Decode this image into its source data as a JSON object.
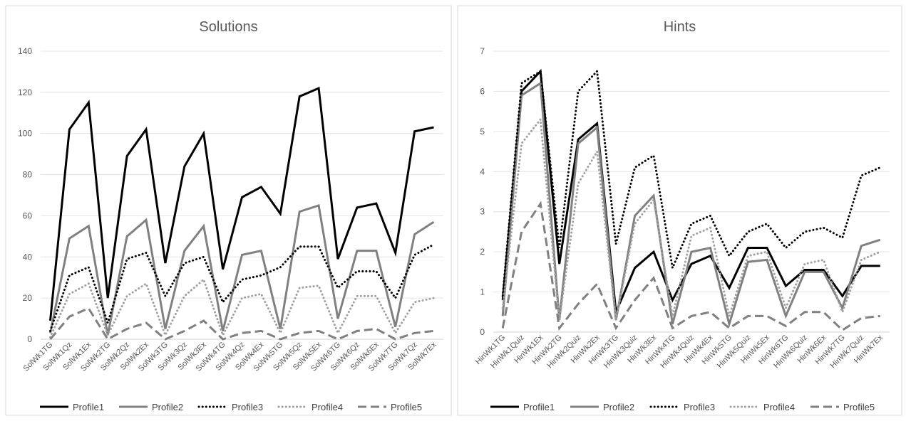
{
  "chart_data": [
    {
      "type": "line",
      "title": "Solutions",
      "xlabel": "",
      "ylabel": "",
      "ylim": [
        0,
        140
      ],
      "yticks": [
        0,
        20,
        40,
        60,
        80,
        100,
        120,
        140
      ],
      "grid": true,
      "legend_position": "bottom",
      "categories": [
        "SolWk1TG",
        "SolWk1Qz",
        "SolWk1Ex",
        "SolWk2TG",
        "SolWk2Qz",
        "SolWk2Ex",
        "SolWk3TG",
        "SolWk3Qz",
        "SolWk3Ex",
        "SolWk4TG",
        "SolWk4Qz",
        "SolWk4Ex",
        "SolWk5TG",
        "SolWk5Qz",
        "SolWk5Ex",
        "SolWk6TG",
        "SolWk6Qz",
        "SolWk6Ex",
        "SolWk7TG",
        "SolWk7Qz",
        "SolWk7Ex"
      ],
      "series": [
        {
          "name": "Profile1",
          "color": "#000000",
          "style": "solid",
          "values": [
            9,
            102,
            115,
            20,
            89,
            102,
            37,
            84,
            100,
            34,
            69,
            74,
            61,
            118,
            122,
            39,
            64,
            66,
            42,
            101,
            103
          ]
        },
        {
          "name": "Profile2",
          "color": "#808080",
          "style": "solid",
          "values": [
            3,
            49,
            55,
            2,
            50,
            58,
            5,
            43,
            55,
            4,
            41,
            43,
            5,
            62,
            65,
            10,
            43,
            43,
            6,
            51,
            57
          ]
        },
        {
          "name": "Profile3",
          "color": "#000000",
          "style": "dotted",
          "values": [
            4,
            31,
            35,
            8,
            39,
            42,
            21,
            37,
            40,
            18,
            29,
            31,
            35,
            45,
            45,
            25,
            33,
            33,
            20,
            41,
            46
          ]
        },
        {
          "name": "Profile4",
          "color": "#a0a0a0",
          "style": "dotted",
          "values": [
            1,
            22,
            27,
            2,
            21,
            27,
            2,
            21,
            29,
            2,
            20,
            22,
            3,
            25,
            26,
            3,
            21,
            21,
            3,
            18,
            20
          ]
        },
        {
          "name": "Profile5",
          "color": "#808080",
          "style": "dashed",
          "values": [
            0,
            11,
            15,
            0,
            5,
            8,
            0,
            4,
            9,
            0,
            3,
            4,
            0,
            3,
            4,
            0,
            4,
            5,
            0,
            3,
            4
          ]
        }
      ]
    },
    {
      "type": "line",
      "title": "Hints",
      "xlabel": "",
      "ylabel": "",
      "ylim": [
        0,
        7
      ],
      "yticks": [
        0,
        1,
        2,
        3,
        4,
        5,
        6,
        7
      ],
      "grid": true,
      "legend_position": "bottom",
      "categories": [
        "HinWk1TG",
        "HinWk1Quiz",
        "HinWk1Ex",
        "HinWk2TG",
        "HinWk2Quiz",
        "HinWk2Ex",
        "HinWk3TG",
        "HinWk3Quiz",
        "HinWk3Ex",
        "HinWk4TG",
        "HinWk4Quiz",
        "HinWk4Ex",
        "HinWk5TG",
        "HinWk5Quiz",
        "HinWk5Ex",
        "HinWk6TG",
        "HinWk6Quiz",
        "HinWk6Ex",
        "HinWk7TG",
        "HinWk7Quiz",
        "HinWk7Ex"
      ],
      "series": [
        {
          "name": "Profile1",
          "color": "#000000",
          "style": "solid",
          "values": [
            0.8,
            6.0,
            6.5,
            1.7,
            4.8,
            5.2,
            0.5,
            1.6,
            2.0,
            0.8,
            1.7,
            1.9,
            1.1,
            2.1,
            2.1,
            1.15,
            1.55,
            1.55,
            0.9,
            1.65,
            1.65
          ]
        },
        {
          "name": "Profile2",
          "color": "#808080",
          "style": "solid",
          "values": [
            0.4,
            5.9,
            6.2,
            0.3,
            4.7,
            5.1,
            0.3,
            2.9,
            3.4,
            0.2,
            2.0,
            2.1,
            0.2,
            1.75,
            1.8,
            0.4,
            1.5,
            1.5,
            0.6,
            2.15,
            2.3
          ]
        },
        {
          "name": "Profile3",
          "color": "#000000",
          "style": "dotted",
          "values": [
            0.9,
            6.2,
            6.5,
            2.1,
            6.0,
            6.5,
            2.2,
            4.1,
            4.4,
            1.6,
            2.7,
            2.9,
            1.9,
            2.5,
            2.7,
            2.1,
            2.5,
            2.6,
            2.35,
            3.9,
            4.1
          ]
        },
        {
          "name": "Profile4",
          "color": "#a0a0a0",
          "style": "dotted",
          "values": [
            0.6,
            4.7,
            5.3,
            0.3,
            3.7,
            4.5,
            0.3,
            2.7,
            3.3,
            0.4,
            2.4,
            2.6,
            0.4,
            1.9,
            2.0,
            0.6,
            1.7,
            1.8,
            0.5,
            1.8,
            2.0
          ]
        },
        {
          "name": "Profile5",
          "color": "#808080",
          "style": "dashed",
          "values": [
            0.1,
            2.5,
            3.2,
            0.1,
            0.7,
            1.2,
            0.1,
            0.8,
            1.35,
            0.1,
            0.4,
            0.5,
            0.1,
            0.4,
            0.4,
            0.15,
            0.5,
            0.5,
            0.05,
            0.35,
            0.4
          ]
        }
      ]
    }
  ]
}
